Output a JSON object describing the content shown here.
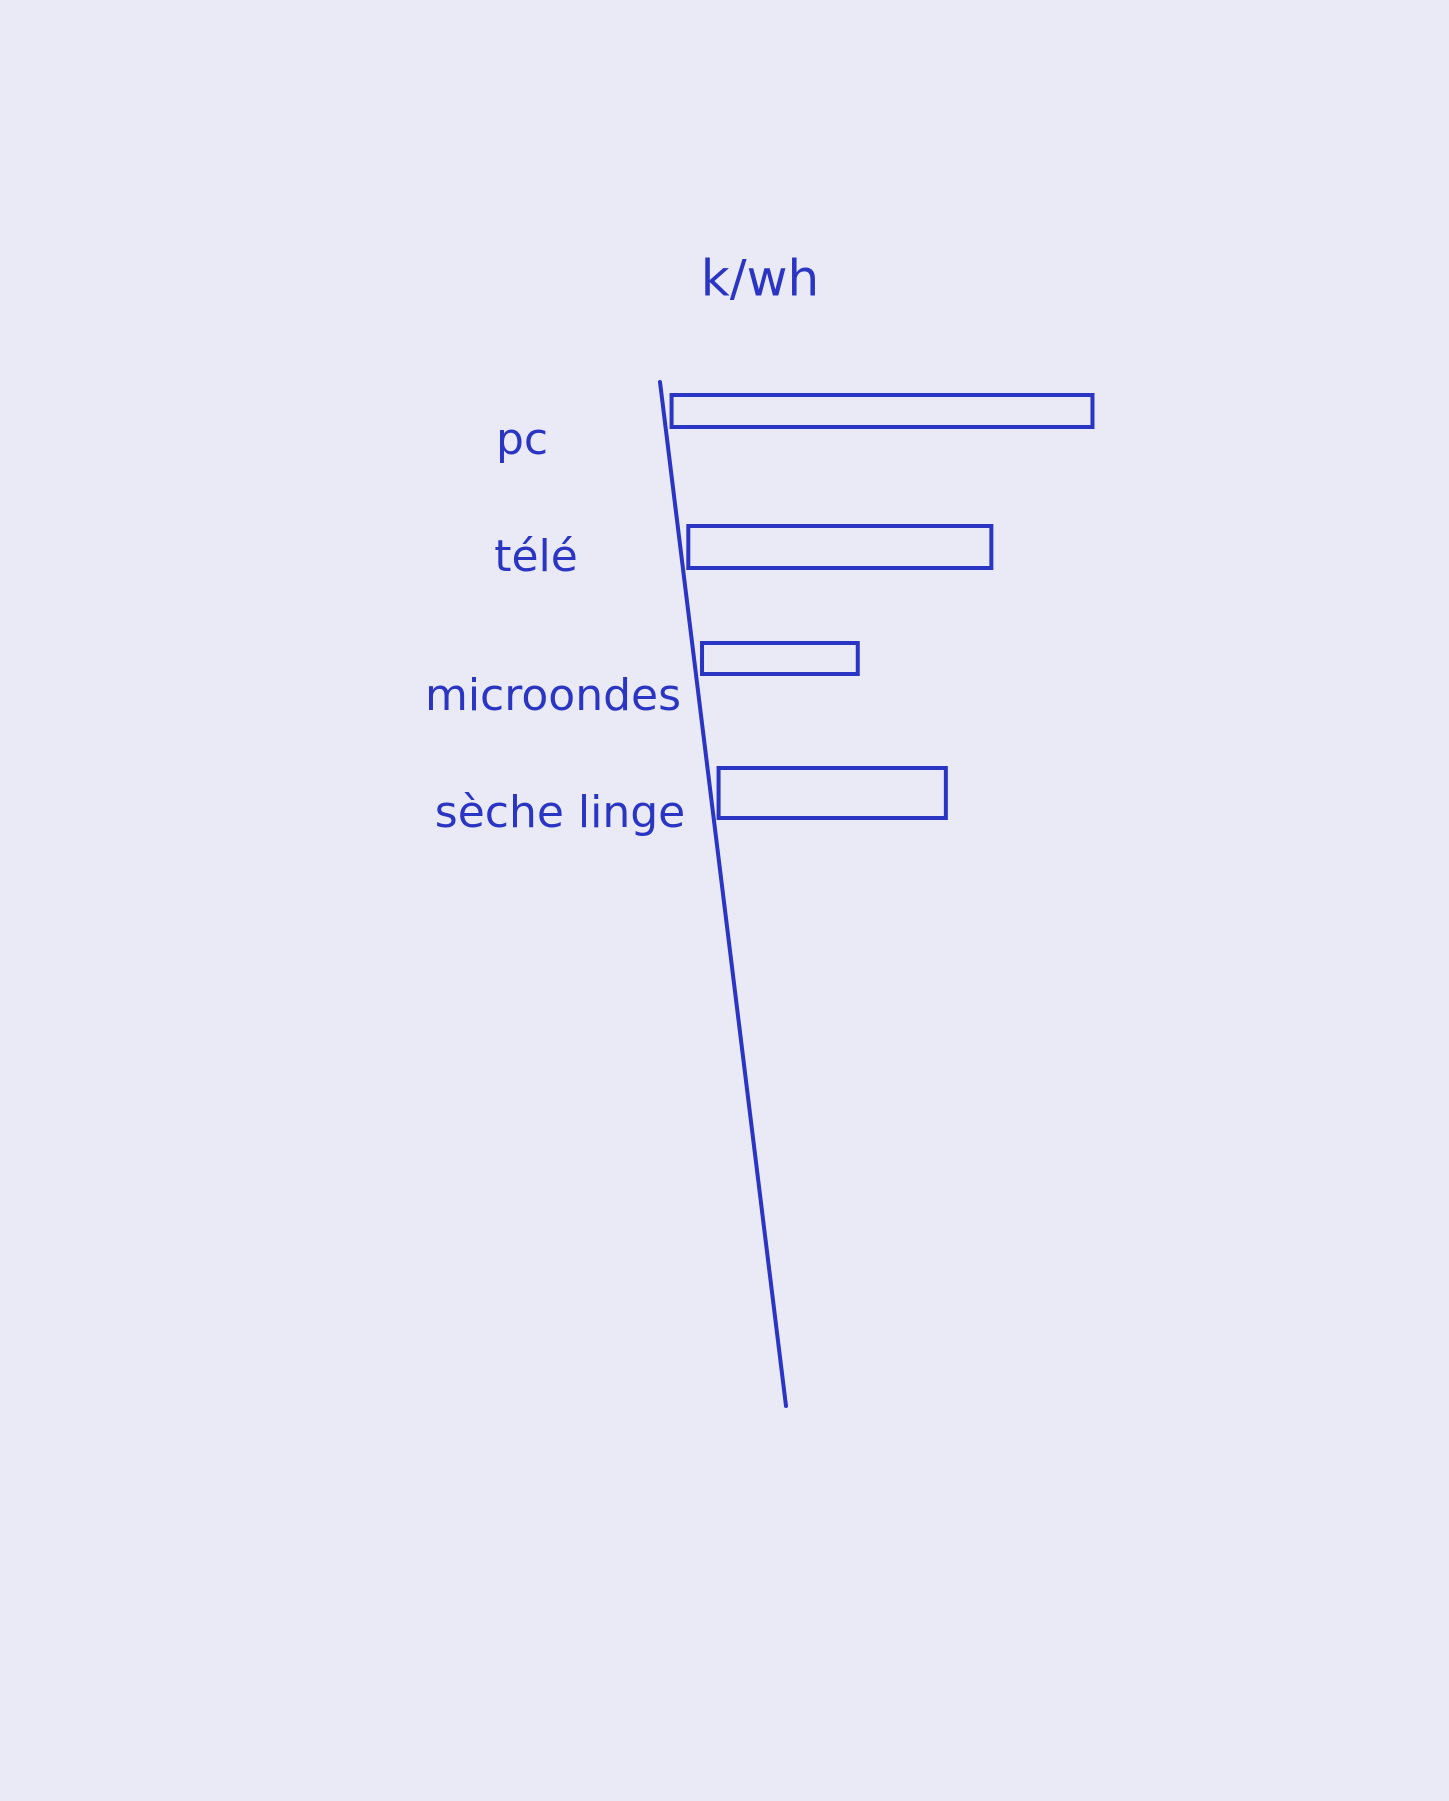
{
  "chart_data": {
    "type": "barh",
    "title": "k/wh",
    "categories": [
      "pc",
      "télé",
      "microondes",
      "sèche linge"
    ],
    "values": [
      100,
      72,
      37,
      54
    ],
    "color": "#2b35c4",
    "xlim": [
      0,
      110
    ]
  }
}
